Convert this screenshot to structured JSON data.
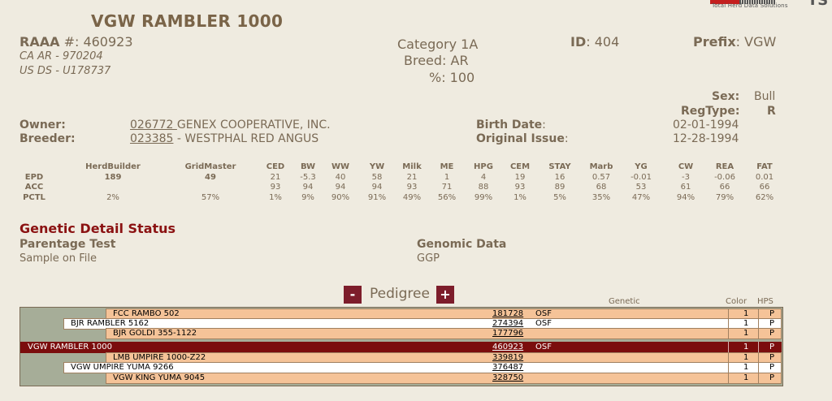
{
  "brand": {
    "tagline": "Total Herd Data Solutions",
    "logo_text": "TS"
  },
  "animal": {
    "name": "VGW RAMBLER 1000",
    "reg_prefix_label": "RAAA",
    "reg_number": "#: 460923",
    "alt_ids": [
      "CA AR - 970204",
      "US DS - U178737"
    ],
    "category": "Category 1A",
    "breed": "Breed: AR",
    "percent": "%: 100",
    "id_label": "ID",
    "id_value": ": 404",
    "prefix_label": "Prefix",
    "prefix_value": ": VGW",
    "sex_label": "Sex:",
    "sex_value": "Bull",
    "regtype_label": "RegType:",
    "regtype_value": "R"
  },
  "owner": {
    "label": "Owner:",
    "code": "026772 ",
    "name": " GENEX COOPERATIVE, INC."
  },
  "breeder": {
    "label": "Breeder:",
    "code": "023385",
    "name": " - WESTPHAL RED ANGUS"
  },
  "dates": {
    "birth_label": "Birth Date",
    "birth_colon": ":",
    "birth_value": "02-01-1994",
    "issue_label": "Original Issue",
    "issue_colon": ":",
    "issue_value": "12-28-1994"
  },
  "epd": {
    "row_labels": [
      "EPD",
      "ACC",
      "PCTL"
    ],
    "columns": [
      {
        "h": "HerdBuilder",
        "epd": "189",
        "acc": "",
        "pctl": "2%"
      },
      {
        "h": "GridMaster",
        "epd": "49",
        "acc": "",
        "pctl": "57%"
      },
      {
        "h": "CED",
        "epd": "21",
        "acc": "93",
        "pctl": "1%"
      },
      {
        "h": "BW",
        "epd": "-5.3",
        "acc": "94",
        "pctl": "9%"
      },
      {
        "h": "WW",
        "epd": "40",
        "acc": "94",
        "pctl": "90%"
      },
      {
        "h": "YW",
        "epd": "58",
        "acc": "94",
        "pctl": "91%"
      },
      {
        "h": "Milk",
        "epd": "21",
        "acc": "93",
        "pctl": "49%"
      },
      {
        "h": "ME",
        "epd": "1",
        "acc": "71",
        "pctl": "56%"
      },
      {
        "h": "HPG",
        "epd": "4",
        "acc": "88",
        "pctl": "99%"
      },
      {
        "h": "CEM",
        "epd": "19",
        "acc": "93",
        "pctl": "1%"
      },
      {
        "h": "STAY",
        "epd": "16",
        "acc": "89",
        "pctl": "5%"
      },
      {
        "h": "Marb",
        "epd": "0.57",
        "acc": "68",
        "pctl": "35%"
      },
      {
        "h": "YG",
        "epd": "-0.01",
        "acc": "53",
        "pctl": "47%"
      },
      {
        "h": "CW",
        "epd": "-3",
        "acc": "61",
        "pctl": "94%"
      },
      {
        "h": "REA",
        "epd": "-0.06",
        "acc": "66",
        "pctl": "79%"
      },
      {
        "h": "FAT",
        "epd": "0.01",
        "acc": "66",
        "pctl": "62%"
      }
    ]
  },
  "genetic": {
    "title": "Genetic Detail Status",
    "parentage_label": "Parentage Test",
    "parentage_value": "Sample on File",
    "genomic_label": "Genomic Data",
    "genomic_value": "GGP"
  },
  "pedigree": {
    "minus_label": "-",
    "plus_label": "+",
    "label": "Pedigree",
    "genetic_header": "Genetic",
    "color_header": "Color",
    "hps_header": "HPS",
    "rows": [
      {
        "name": "FCC RAMBO 502",
        "reg": "181728",
        "genetic": "OSF",
        "color": "1",
        "hps": "P"
      },
      {
        "name": "BJR RAMBLER 5162",
        "reg": "274394",
        "genetic": "OSF",
        "color": "1",
        "hps": "P"
      },
      {
        "name": "BJR GOLDI 355-1122",
        "reg": "177796",
        "genetic": "",
        "color": "1",
        "hps": "P"
      },
      {
        "name": "VGW RAMBLER 1000",
        "reg": "460923",
        "genetic": "OSF",
        "color": "1",
        "hps": "P"
      },
      {
        "name": "LMB UMPIRE 1000-Z22",
        "reg": "339819",
        "genetic": "",
        "color": "1",
        "hps": "P"
      },
      {
        "name": "VGW UMPIRE YUMA 9266",
        "reg": "376487",
        "genetic": "",
        "color": "1",
        "hps": "P"
      },
      {
        "name": "VGW KING YUMA 9045",
        "reg": "328750",
        "genetic": "",
        "color": "1",
        "hps": "P"
      }
    ]
  }
}
